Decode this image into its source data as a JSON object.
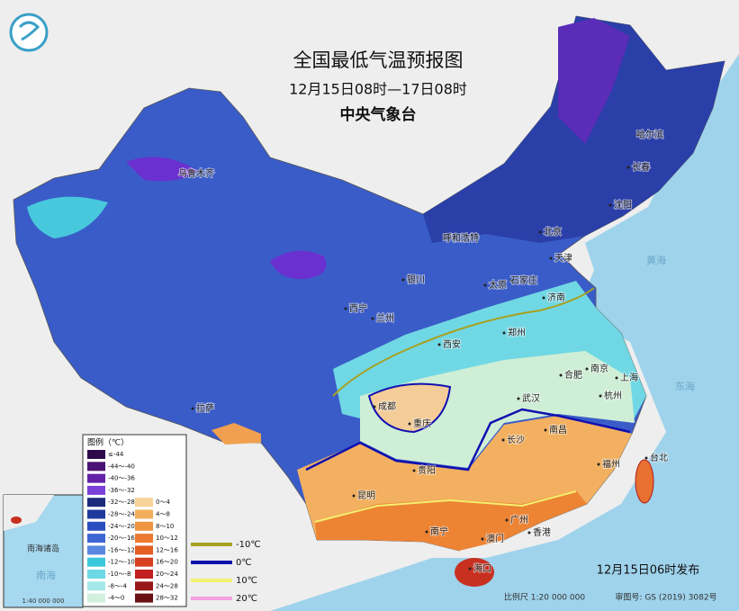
{
  "header": {
    "title": "全国最低气温预报图",
    "subtitle": "12月15日08时—17日08时",
    "agency": "中央气象台"
  },
  "legend": {
    "title": "图例（℃）",
    "fills": [
      {
        "label": "≤-44",
        "color": "#2e0a4a"
      },
      {
        "label": "-44～-40",
        "color": "#4a1275"
      },
      {
        "label": "-40～-36",
        "color": "#6420a8"
      },
      {
        "label": "-36～-32",
        "color": "#7a40d8"
      },
      {
        "label": "-32～-28",
        "color": "#1c2a7c"
      },
      {
        "label": "-28～-24",
        "color": "#1f3a9c"
      },
      {
        "label": "-24～-20",
        "color": "#2a4ec0"
      },
      {
        "label": "-20～-16",
        "color": "#3d66d4"
      },
      {
        "label": "-16～-12",
        "color": "#5a88e0"
      },
      {
        "label": "-12～-10",
        "color": "#3cc8dc"
      },
      {
        "label": "-10～-8",
        "color": "#6ed8e4"
      },
      {
        "label": "-8～-4",
        "color": "#a6e8ea"
      },
      {
        "label": "-4～0",
        "color": "#d2f0dc"
      },
      {
        "label": "0～4",
        "color": "#f6d49a"
      },
      {
        "label": "4～8",
        "color": "#f2ae5c"
      },
      {
        "label": "8～10",
        "color": "#ef9440"
      },
      {
        "label": "10～12",
        "color": "#ec7a30"
      },
      {
        "label": "12～16",
        "color": "#e45e22"
      },
      {
        "label": "16～20",
        "color": "#d84020"
      },
      {
        "label": "20～24",
        "color": "#c02020"
      },
      {
        "label": "24～28",
        "color": "#981818"
      },
      {
        "label": "28～32",
        "color": "#6a1010"
      }
    ],
    "isolines": [
      {
        "label": "-10℃",
        "color": "#a8a020"
      },
      {
        "label": "0℃",
        "color": "#1010b0"
      },
      {
        "label": "10℃",
        "color": "#f4f070"
      },
      {
        "label": "20℃",
        "color": "#f4a0e0"
      }
    ]
  },
  "cities": [
    "乌鲁木齐",
    "哈尔滨",
    "长春",
    "沈阳",
    "呼和浩特",
    "北京",
    "天津",
    "银川",
    "太原",
    "石家庄",
    "西宁",
    "兰州",
    "济南",
    "西安",
    "郑州",
    "合肥",
    "南京",
    "上海",
    "成都",
    "武汉",
    "杭州",
    "重庆",
    "拉萨",
    "长沙",
    "南昌",
    "福州",
    "台北",
    "贵阳",
    "昆明",
    "南宁",
    "广州",
    "澳门",
    "香港",
    "海口"
  ],
  "seas": [
    "黄海",
    "东海",
    "南海"
  ],
  "inset": {
    "title": "南海诸岛",
    "scale": "1:40 000 000"
  },
  "footer": {
    "release": "12月15日06时发布",
    "scale": "比例尺 1:20 000 000",
    "review": "审图号: GS (2019) 3082号"
  }
}
